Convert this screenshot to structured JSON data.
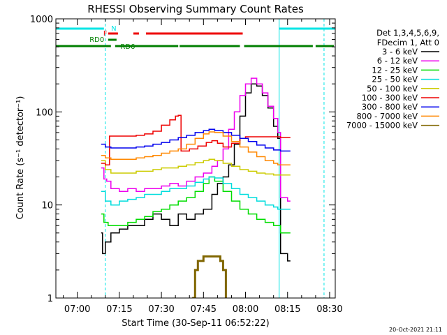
{
  "chart_data": {
    "type": "line",
    "title": "RHESSI Observing Summary Count Rates",
    "xlabel": "Start Time (30-Sep-11 06:52:22)",
    "ylabel": "Count Rate (s⁻¹ detector⁻¹)",
    "y_scale": "log",
    "ylim": [
      1,
      1000
    ],
    "xlim": [
      "06:52:22",
      "08:32:00"
    ],
    "x_ticks": [
      "07:00",
      "07:15",
      "07:30",
      "07:45",
      "08:00",
      "08:15",
      "08:30"
    ],
    "y_ticks": [
      "1",
      "10",
      "100",
      "1000"
    ],
    "legend_title": [
      "Det 1,3,4,5,6,9,",
      "FDecim 1, Att 0"
    ],
    "legend_position": "right",
    "timestamp": "20-Oct-2021 21:11",
    "flag_labels": {
      "N": "N",
      "F": "F",
      "RD0": "RD0",
      "RD6": "RD6"
    },
    "flags": {
      "N": {
        "color": "#00e5e5",
        "intervals": [
          [
            "06:52:22",
            "07:09:30"
          ],
          [
            "08:12:00",
            "08:32:00"
          ]
        ]
      },
      "F": {
        "color": "#ee0000",
        "intervals": [
          [
            "07:11:00",
            "07:14:30"
          ],
          [
            "07:20:00",
            "07:22:00"
          ],
          [
            "07:24:30",
            "07:59:00"
          ]
        ]
      },
      "RD0": {
        "color": "#007f00",
        "intervals": [
          [
            "07:11:00",
            "07:14:00"
          ]
        ]
      },
      "RD6": {
        "color": "#007f00",
        "intervals": [
          [
            "06:52:22",
            "07:12:00"
          ],
          [
            "07:13:30",
            "07:36:00"
          ],
          [
            "07:36:30",
            "07:58:00"
          ],
          [
            "07:59:30",
            "08:24:00"
          ],
          [
            "08:25:00",
            "08:31:30"
          ]
        ]
      }
    },
    "vlines": [
      {
        "time": "06:52:22",
        "style": "solid",
        "color": "#00e5e5"
      },
      {
        "time": "07:10:00",
        "style": "dashed",
        "color": "#00e5e5"
      },
      {
        "time": "08:12:00",
        "style": "solid",
        "color": "#00e5e5"
      },
      {
        "time": "08:28:00",
        "style": "dashed",
        "color": "#00e5e5"
      }
    ],
    "series": [
      {
        "name": "3 - 6 keV",
        "color": "#000000",
        "points": [
          [
            "07:08:30",
            5
          ],
          [
            "07:09:00",
            3
          ],
          [
            "07:10:00",
            4
          ],
          [
            "07:12:00",
            5
          ],
          [
            "07:15:00",
            5.5
          ],
          [
            "07:18:00",
            6
          ],
          [
            "07:21:00",
            6
          ],
          [
            "07:24:00",
            7
          ],
          [
            "07:27:00",
            8
          ],
          [
            "07:30:00",
            7
          ],
          [
            "07:33:00",
            6
          ],
          [
            "07:36:00",
            8
          ],
          [
            "07:39:00",
            7
          ],
          [
            "07:42:00",
            8
          ],
          [
            "07:45:00",
            9
          ],
          [
            "07:48:00",
            13
          ],
          [
            "07:50:00",
            17
          ],
          [
            "07:52:00",
            20
          ],
          [
            "07:54:00",
            27
          ],
          [
            "07:56:00",
            45
          ],
          [
            "07:58:00",
            90
          ],
          [
            "08:00:00",
            160
          ],
          [
            "08:02:00",
            200
          ],
          [
            "08:04:00",
            190
          ],
          [
            "08:06:00",
            150
          ],
          [
            "08:08:00",
            110
          ],
          [
            "08:10:00",
            70
          ],
          [
            "08:11:30",
            52
          ],
          [
            "08:12:30",
            3
          ],
          [
            "08:15:00",
            2.5
          ],
          [
            "08:16:00",
            2.5
          ]
        ]
      },
      {
        "name": "6 - 12 keV",
        "color": "#ee00ee",
        "points": [
          [
            "07:08:30",
            25
          ],
          [
            "07:09:30",
            19
          ],
          [
            "07:10:30",
            18
          ],
          [
            "07:12:00",
            15
          ],
          [
            "07:15:00",
            14
          ],
          [
            "07:18:00",
            15
          ],
          [
            "07:21:00",
            14
          ],
          [
            "07:24:00",
            15
          ],
          [
            "07:27:00",
            15
          ],
          [
            "07:30:00",
            16
          ],
          [
            "07:33:00",
            17
          ],
          [
            "07:36:00",
            16
          ],
          [
            "07:39:00",
            18
          ],
          [
            "07:42:00",
            20
          ],
          [
            "07:45:00",
            22
          ],
          [
            "07:48:00",
            26
          ],
          [
            "07:50:00",
            30
          ],
          [
            "07:52:00",
            40
          ],
          [
            "07:54:00",
            65
          ],
          [
            "07:56:00",
            100
          ],
          [
            "07:58:00",
            150
          ],
          [
            "08:00:00",
            200
          ],
          [
            "08:02:00",
            230
          ],
          [
            "08:04:00",
            200
          ],
          [
            "08:06:00",
            160
          ],
          [
            "08:08:00",
            115
          ],
          [
            "08:10:00",
            85
          ],
          [
            "08:11:30",
            60
          ],
          [
            "08:12:30",
            12
          ],
          [
            "08:15:00",
            11
          ],
          [
            "08:16:00",
            11
          ]
        ]
      },
      {
        "name": "12 - 25 keV",
        "color": "#00dd00",
        "points": [
          [
            "07:08:30",
            8
          ],
          [
            "07:09:30",
            6.5
          ],
          [
            "07:11:00",
            6
          ],
          [
            "07:13:00",
            6
          ],
          [
            "07:15:00",
            6
          ],
          [
            "07:18:00",
            6.5
          ],
          [
            "07:21:00",
            7
          ],
          [
            "07:24:00",
            7.5
          ],
          [
            "07:27:00",
            8.5
          ],
          [
            "07:30:00",
            9
          ],
          [
            "07:33:00",
            10
          ],
          [
            "07:36:00",
            11
          ],
          [
            "07:39:00",
            12
          ],
          [
            "07:42:00",
            14
          ],
          [
            "07:45:00",
            17
          ],
          [
            "07:47:00",
            20
          ],
          [
            "07:49:00",
            18
          ],
          [
            "07:52:00",
            14
          ],
          [
            "07:55:00",
            11
          ],
          [
            "07:58:00",
            9
          ],
          [
            "08:01:00",
            8
          ],
          [
            "08:04:00",
            7
          ],
          [
            "08:07:00",
            6.5
          ],
          [
            "08:10:00",
            6
          ],
          [
            "08:11:30",
            6
          ],
          [
            "08:12:30",
            5
          ],
          [
            "08:15:00",
            5
          ],
          [
            "08:16:00",
            5
          ]
        ]
      },
      {
        "name": "25 - 50 keV",
        "color": "#00dddd",
        "points": [
          [
            "07:08:30",
            14
          ],
          [
            "07:10:00",
            11
          ],
          [
            "07:12:00",
            10
          ],
          [
            "07:15:00",
            11
          ],
          [
            "07:18:00",
            11.5
          ],
          [
            "07:21:00",
            12
          ],
          [
            "07:24:00",
            13
          ],
          [
            "07:27:00",
            13
          ],
          [
            "07:30:00",
            14
          ],
          [
            "07:33:00",
            15
          ],
          [
            "07:36:00",
            15
          ],
          [
            "07:39:00",
            16
          ],
          [
            "07:42:00",
            17.5
          ],
          [
            "07:45:00",
            19
          ],
          [
            "07:47:00",
            20
          ],
          [
            "07:49:00",
            19.5
          ],
          [
            "07:52:00",
            17
          ],
          [
            "07:55:00",
            15
          ],
          [
            "07:58:00",
            13
          ],
          [
            "08:01:00",
            12
          ],
          [
            "08:04:00",
            11
          ],
          [
            "08:07:00",
            10
          ],
          [
            "08:10:00",
            9.5
          ],
          [
            "08:11:30",
            9
          ],
          [
            "08:12:30",
            9
          ],
          [
            "08:15:00",
            9
          ],
          [
            "08:16:00",
            9
          ]
        ]
      },
      {
        "name": "50 - 100 keV",
        "color": "#cccc00",
        "points": [
          [
            "07:08:30",
            30
          ],
          [
            "07:10:00",
            24
          ],
          [
            "07:12:00",
            22
          ],
          [
            "07:15:00",
            22
          ],
          [
            "07:18:00",
            22
          ],
          [
            "07:21:00",
            23
          ],
          [
            "07:24:00",
            23
          ],
          [
            "07:27:00",
            24
          ],
          [
            "07:30:00",
            25
          ],
          [
            "07:33:00",
            25
          ],
          [
            "07:36:00",
            26
          ],
          [
            "07:39:00",
            27
          ],
          [
            "07:42:00",
            28.5
          ],
          [
            "07:45:00",
            30
          ],
          [
            "07:47:00",
            31
          ],
          [
            "07:49:00",
            30
          ],
          [
            "07:52:00",
            28
          ],
          [
            "07:55:00",
            26
          ],
          [
            "07:58:00",
            24
          ],
          [
            "08:01:00",
            23
          ],
          [
            "08:04:00",
            22
          ],
          [
            "08:07:00",
            21.5
          ],
          [
            "08:10:00",
            21
          ],
          [
            "08:11:30",
            21
          ],
          [
            "08:12:30",
            21
          ],
          [
            "08:15:00",
            21
          ],
          [
            "08:16:00",
            21
          ]
        ]
      },
      {
        "name": "100 - 300 keV",
        "color": "#ee0000",
        "points": [
          [
            "07:08:30",
            28
          ],
          [
            "07:10:00",
            27
          ],
          [
            "07:11:30",
            55
          ],
          [
            "07:15:00",
            55
          ],
          [
            "07:18:00",
            55
          ],
          [
            "07:21:00",
            56
          ],
          [
            "07:24:00",
            58
          ],
          [
            "07:27:00",
            62
          ],
          [
            "07:30:00",
            72
          ],
          [
            "07:33:00",
            82
          ],
          [
            "07:35:00",
            90
          ],
          [
            "07:36:00",
            92
          ],
          [
            "07:37:00",
            38
          ],
          [
            "07:40:00",
            40
          ],
          [
            "07:43:00",
            43
          ],
          [
            "07:46:00",
            47
          ],
          [
            "07:48:00",
            49
          ],
          [
            "07:50:00",
            46
          ],
          [
            "07:52:00",
            42
          ],
          [
            "07:55:00",
            46
          ],
          [
            "07:58:00",
            52
          ],
          [
            "08:00:00",
            54
          ],
          [
            "08:03:00",
            54
          ],
          [
            "08:06:00",
            54
          ],
          [
            "08:09:00",
            54
          ],
          [
            "08:11:30",
            54
          ],
          [
            "08:12:30",
            53
          ],
          [
            "08:15:00",
            53
          ],
          [
            "08:16:00",
            53
          ]
        ]
      },
      {
        "name": "300 - 800 keV",
        "color": "#0000ee",
        "points": [
          [
            "07:08:30",
            45
          ],
          [
            "07:10:00",
            42
          ],
          [
            "07:12:00",
            41
          ],
          [
            "07:15:00",
            41
          ],
          [
            "07:18:00",
            41
          ],
          [
            "07:21:00",
            42
          ],
          [
            "07:24:00",
            43
          ],
          [
            "07:27:00",
            45
          ],
          [
            "07:30:00",
            47
          ],
          [
            "07:33:00",
            50
          ],
          [
            "07:36:00",
            53
          ],
          [
            "07:39:00",
            56
          ],
          [
            "07:42:00",
            60
          ],
          [
            "07:45:00",
            63
          ],
          [
            "07:47:00",
            65
          ],
          [
            "07:49:00",
            63
          ],
          [
            "07:52:00",
            60
          ],
          [
            "07:55:00",
            56
          ],
          [
            "07:58:00",
            52
          ],
          [
            "08:01:00",
            48
          ],
          [
            "08:04:00",
            44
          ],
          [
            "08:07:00",
            41
          ],
          [
            "08:10:00",
            39
          ],
          [
            "08:11:30",
            39
          ],
          [
            "08:12:30",
            38
          ],
          [
            "08:15:00",
            38
          ],
          [
            "08:16:00",
            38
          ]
        ]
      },
      {
        "name": "800 - 7000 keV",
        "color": "#ff8800",
        "points": [
          [
            "07:08:30",
            34
          ],
          [
            "07:10:00",
            32
          ],
          [
            "07:12:00",
            31
          ],
          [
            "07:15:00",
            31
          ],
          [
            "07:18:00",
            31
          ],
          [
            "07:21:00",
            32
          ],
          [
            "07:24:00",
            33
          ],
          [
            "07:27:00",
            34
          ],
          [
            "07:30:00",
            36
          ],
          [
            "07:33:00",
            38
          ],
          [
            "07:36:00",
            40
          ],
          [
            "07:39:00",
            45
          ],
          [
            "07:42:00",
            52
          ],
          [
            "07:45:00",
            58
          ],
          [
            "07:47:00",
            61
          ],
          [
            "07:49:00",
            60
          ],
          [
            "07:52:00",
            55
          ],
          [
            "07:55:00",
            48
          ],
          [
            "07:58:00",
            42
          ],
          [
            "08:01:00",
            37
          ],
          [
            "08:04:00",
            33
          ],
          [
            "08:07:00",
            30
          ],
          [
            "08:10:00",
            28
          ],
          [
            "08:11:30",
            27
          ],
          [
            "08:12:30",
            27
          ],
          [
            "08:15:00",
            27
          ],
          [
            "08:16:00",
            27
          ]
        ]
      },
      {
        "name": "7000 - 15000 keV",
        "color": "#806600",
        "points": [
          [
            "07:41:00",
            1
          ],
          [
            "07:42:00",
            2
          ],
          [
            "07:43:00",
            2.5
          ],
          [
            "07:45:00",
            2.8
          ],
          [
            "07:48:00",
            2.8
          ],
          [
            "07:50:00",
            2.8
          ],
          [
            "07:51:00",
            2.5
          ],
          [
            "07:52:00",
            2
          ],
          [
            "07:53:00",
            1
          ]
        ]
      }
    ]
  }
}
